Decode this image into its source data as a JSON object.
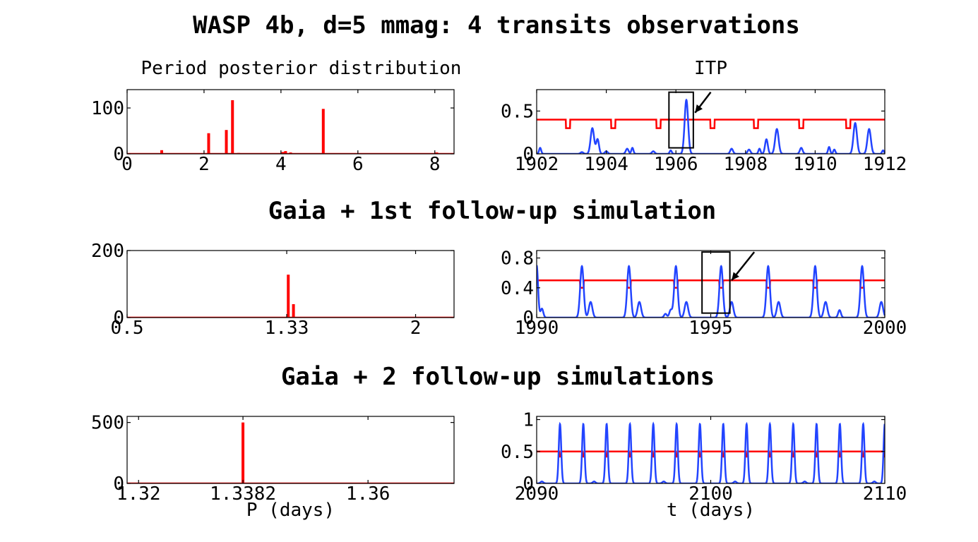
{
  "figure": {
    "row_titles": [
      "WASP 4b, d=5 mmag: 4 transits observations",
      "Gaia + 1st follow-up simulation",
      "Gaia + 2 follow-up simulations"
    ]
  },
  "colors": {
    "posterior": "#ff0000",
    "itp_curve": "#2244ff",
    "threshold": "#ff0000",
    "marker": "#000000"
  },
  "chart_data": [
    {
      "id": "posterior-1",
      "type": "bar",
      "subtitle": "Period posterior distribution",
      "xlabel": "",
      "xlim": [
        0,
        8.5
      ],
      "ylim": [
        0,
        140
      ],
      "xticks": [
        {
          "v": 0,
          "label": "0"
        },
        {
          "v": 2,
          "label": "2"
        },
        {
          "v": 4,
          "label": "4"
        },
        {
          "v": 6,
          "label": "6"
        },
        {
          "v": 8,
          "label": "8"
        }
      ],
      "yticks": [
        {
          "v": 0,
          "label": "0"
        },
        {
          "v": 100,
          "label": "100"
        }
      ],
      "x": [
        0.9,
        2.12,
        2.58,
        2.74,
        2.9,
        4.05,
        4.12,
        4.25,
        5.1,
        6.9,
        8.05
      ],
      "values": [
        8,
        45,
        52,
        117,
        2,
        4,
        6,
        3,
        98,
        1,
        3
      ]
    },
    {
      "id": "itp-1",
      "type": "line",
      "subtitle": "ITP",
      "xlabel": "",
      "xlim": [
        1902,
        1912
      ],
      "ylim": [
        0,
        0.75
      ],
      "xticks": [
        {
          "v": 1902,
          "label": "1902"
        },
        {
          "v": 1904,
          "label": "1904"
        },
        {
          "v": 1906,
          "label": "1906"
        },
        {
          "v": 1908,
          "label": "1908"
        },
        {
          "v": 1910,
          "label": "1910"
        },
        {
          "v": 1912,
          "label": "1912"
        }
      ],
      "yticks": [
        {
          "v": 0,
          "label": "0"
        },
        {
          "v": 0.5,
          "label": "0.5"
        }
      ],
      "threshold": {
        "level": 0.4,
        "dip": 0.3,
        "dip_width": 0.12,
        "dips": [
          1902.9,
          1904.2,
          1905.5,
          1907.05,
          1908.3,
          1909.6,
          1910.95
        ]
      },
      "peaks": [
        {
          "x": 1902.1,
          "y": 0.07,
          "w": 0.03
        },
        {
          "x": 1903.3,
          "y": 0.02,
          "w": 0.04
        },
        {
          "x": 1903.6,
          "y": 0.3,
          "w": 0.05
        },
        {
          "x": 1903.75,
          "y": 0.17,
          "w": 0.04
        },
        {
          "x": 1904.0,
          "y": 0.03,
          "w": 0.04
        },
        {
          "x": 1904.6,
          "y": 0.06,
          "w": 0.04
        },
        {
          "x": 1904.75,
          "y": 0.07,
          "w": 0.03
        },
        {
          "x": 1905.35,
          "y": 0.03,
          "w": 0.04
        },
        {
          "x": 1905.85,
          "y": 0.04,
          "w": 0.03
        },
        {
          "x": 1906.3,
          "y": 0.63,
          "w": 0.05
        },
        {
          "x": 1907.6,
          "y": 0.06,
          "w": 0.04
        },
        {
          "x": 1908.1,
          "y": 0.05,
          "w": 0.04
        },
        {
          "x": 1908.4,
          "y": 0.06,
          "w": 0.03
        },
        {
          "x": 1908.6,
          "y": 0.17,
          "w": 0.04
        },
        {
          "x": 1908.9,
          "y": 0.29,
          "w": 0.05
        },
        {
          "x": 1909.6,
          "y": 0.07,
          "w": 0.04
        },
        {
          "x": 1910.4,
          "y": 0.08,
          "w": 0.03
        },
        {
          "x": 1910.55,
          "y": 0.05,
          "w": 0.03
        },
        {
          "x": 1911.15,
          "y": 0.36,
          "w": 0.05
        },
        {
          "x": 1911.55,
          "y": 0.29,
          "w": 0.05
        },
        {
          "x": 1911.95,
          "y": 0.04,
          "w": 0.03
        }
      ],
      "marker_box": {
        "x0": 1905.8,
        "x1": 1906.5,
        "y0": 0.07,
        "y1": 0.72
      },
      "arrow": {
        "from": [
          1907.0,
          0.72
        ],
        "to": [
          1906.55,
          0.48
        ]
      }
    },
    {
      "id": "posterior-2",
      "type": "bar",
      "subtitle": "",
      "xlabel": "",
      "xlim": [
        0.5,
        2.2
      ],
      "ylim": [
        0,
        200
      ],
      "xticks": [
        {
          "v": 0.5,
          "label": "0.5"
        },
        {
          "v": 1.33,
          "label": "1.33"
        },
        {
          "v": 2,
          "label": "2"
        }
      ],
      "yticks": [
        {
          "v": 0,
          "label": "0"
        },
        {
          "v": 200,
          "label": "200"
        }
      ],
      "x": [
        1.338,
        1.365
      ],
      "values": [
        128,
        40
      ]
    },
    {
      "id": "itp-2",
      "type": "line",
      "subtitle": "",
      "xlabel": "",
      "xlim": [
        1990,
        2000
      ],
      "ylim": [
        0,
        0.9
      ],
      "xticks": [
        {
          "v": 1990,
          "label": "1990"
        },
        {
          "v": 1995,
          "label": "1995"
        },
        {
          "v": 2000,
          "label": "2000"
        }
      ],
      "yticks": [
        {
          "v": 0,
          "label": "0"
        },
        {
          "v": 0.4,
          "label": "0.4"
        },
        {
          "v": 0.8,
          "label": "0.8"
        }
      ],
      "threshold": {
        "level": 0.5,
        "dip": 0.4,
        "dip_width": 0.1,
        "dips": [
          1991.3,
          1992.65,
          1994.0,
          1995.3,
          1996.65,
          1998.0,
          1999.35
        ]
      },
      "peaks": [
        {
          "x": 1990.0,
          "y": 0.7,
          "w": 0.04
        },
        {
          "x": 1990.15,
          "y": 0.12,
          "w": 0.04
        },
        {
          "x": 1991.3,
          "y": 0.69,
          "w": 0.05
        },
        {
          "x": 1991.55,
          "y": 0.21,
          "w": 0.05
        },
        {
          "x": 1992.65,
          "y": 0.69,
          "w": 0.05
        },
        {
          "x": 1992.95,
          "y": 0.21,
          "w": 0.05
        },
        {
          "x": 1993.7,
          "y": 0.05,
          "w": 0.04
        },
        {
          "x": 1993.85,
          "y": 0.1,
          "w": 0.04
        },
        {
          "x": 1994.0,
          "y": 0.69,
          "w": 0.05
        },
        {
          "x": 1994.3,
          "y": 0.21,
          "w": 0.05
        },
        {
          "x": 1995.3,
          "y": 0.69,
          "w": 0.05
        },
        {
          "x": 1995.6,
          "y": 0.21,
          "w": 0.05
        },
        {
          "x": 1996.65,
          "y": 0.69,
          "w": 0.05
        },
        {
          "x": 1996.95,
          "y": 0.21,
          "w": 0.05
        },
        {
          "x": 1998.0,
          "y": 0.69,
          "w": 0.05
        },
        {
          "x": 1998.3,
          "y": 0.21,
          "w": 0.05
        },
        {
          "x": 1998.7,
          "y": 0.1,
          "w": 0.04
        },
        {
          "x": 1999.35,
          "y": 0.69,
          "w": 0.05
        },
        {
          "x": 1999.9,
          "y": 0.21,
          "w": 0.05
        }
      ],
      "marker_box": {
        "x0": 1994.75,
        "x1": 1995.55,
        "y0": 0.06,
        "y1": 0.88
      },
      "arrow": {
        "from": [
          1996.25,
          0.88
        ],
        "to": [
          1995.6,
          0.5
        ]
      }
    },
    {
      "id": "posterior-3",
      "type": "bar",
      "subtitle": "",
      "xlabel": "P (days)",
      "xlim": [
        1.318,
        1.375
      ],
      "ylim": [
        0,
        550
      ],
      "xticks": [
        {
          "v": 1.32,
          "label": "1.32"
        },
        {
          "v": 1.3382,
          "label": "1.3382"
        },
        {
          "v": 1.36,
          "label": "1.36"
        }
      ],
      "yticks": [
        {
          "v": 0,
          "label": "0"
        },
        {
          "v": 500,
          "label": "500"
        }
      ],
      "x": [
        1.3382
      ],
      "values": [
        500
      ]
    },
    {
      "id": "itp-3",
      "type": "line",
      "subtitle": "",
      "xlabel": "t (days)",
      "xlim": [
        2090,
        2110
      ],
      "ylim": [
        0,
        1.05
      ],
      "xticks": [
        {
          "v": 2090,
          "label": "2090"
        },
        {
          "v": 2100,
          "label": "2100"
        },
        {
          "v": 2110,
          "label": "2110"
        }
      ],
      "yticks": [
        {
          "v": 0,
          "label": "0"
        },
        {
          "v": 0.5,
          "label": "0.5"
        },
        {
          "v": 1,
          "label": "1"
        }
      ],
      "threshold": {
        "level": 0.5,
        "dip": 0.42,
        "dip_width": 0.1,
        "dips": [
          2091.34,
          2092.68,
          2094.02,
          2095.36,
          2096.7,
          2098.04,
          2099.38,
          2100.72,
          2102.06,
          2103.4,
          2104.74,
          2106.08,
          2107.42,
          2108.76,
          2110.0
        ]
      },
      "peaks": [
        {
          "x": 2091.34,
          "y": 0.93,
          "w": 0.07
        },
        {
          "x": 2092.68,
          "y": 0.93,
          "w": 0.07
        },
        {
          "x": 2094.02,
          "y": 0.93,
          "w": 0.07
        },
        {
          "x": 2095.36,
          "y": 0.93,
          "w": 0.07
        },
        {
          "x": 2096.7,
          "y": 0.93,
          "w": 0.07
        },
        {
          "x": 2098.04,
          "y": 0.93,
          "w": 0.07
        },
        {
          "x": 2099.38,
          "y": 0.93,
          "w": 0.07
        },
        {
          "x": 2100.72,
          "y": 0.93,
          "w": 0.07
        },
        {
          "x": 2102.06,
          "y": 0.93,
          "w": 0.07
        },
        {
          "x": 2103.4,
          "y": 0.93,
          "w": 0.07
        },
        {
          "x": 2104.74,
          "y": 0.93,
          "w": 0.07
        },
        {
          "x": 2106.08,
          "y": 0.93,
          "w": 0.07
        },
        {
          "x": 2107.42,
          "y": 0.93,
          "w": 0.07
        },
        {
          "x": 2108.76,
          "y": 0.93,
          "w": 0.07
        },
        {
          "x": 2110.0,
          "y": 0.93,
          "w": 0.07
        },
        {
          "x": 2090.3,
          "y": 0.03,
          "w": 0.08
        },
        {
          "x": 2093.3,
          "y": 0.03,
          "w": 0.08
        },
        {
          "x": 2097.3,
          "y": 0.03,
          "w": 0.08
        },
        {
          "x": 2101.4,
          "y": 0.03,
          "w": 0.08
        },
        {
          "x": 2105.4,
          "y": 0.03,
          "w": 0.08
        },
        {
          "x": 2109.4,
          "y": 0.03,
          "w": 0.08
        }
      ]
    }
  ]
}
